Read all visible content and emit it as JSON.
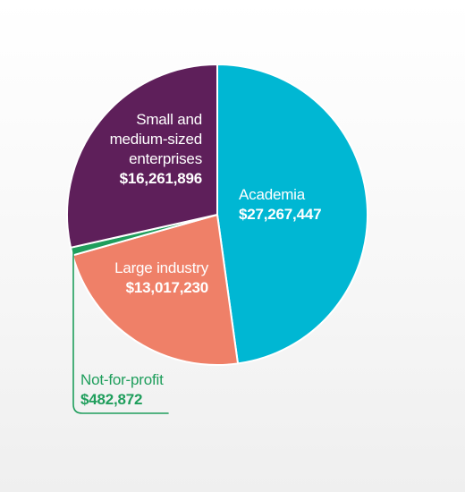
{
  "chart_data": {
    "type": "pie",
    "slices": [
      {
        "label_lines": [
          "Academia"
        ],
        "value": 27267447,
        "value_label": "$27,267,447",
        "color": "#00b7d3"
      },
      {
        "label_lines": [
          "Large industry"
        ],
        "value": 13017230,
        "value_label": "$13,017,230",
        "color": "#ef8068"
      },
      {
        "label_lines": [
          "Not-for-profit"
        ],
        "value": 482872,
        "value_label": "$482,872",
        "color": "#1f9e5c"
      },
      {
        "label_lines": [
          "Small and",
          "medium-sized",
          "enterprises"
        ],
        "value": 16261896,
        "value_label": "$16,261,896",
        "color": "#5e1f5a"
      }
    ],
    "start_angle_deg": 0,
    "direction": "clockwise",
    "legend": "none"
  }
}
